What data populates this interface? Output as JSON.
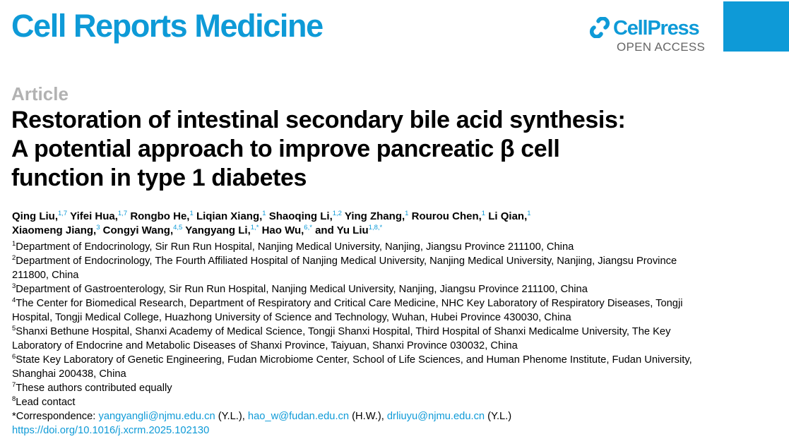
{
  "header": {
    "journal_title": "Cell Reports Medicine",
    "publisher_name": "CellPress",
    "open_access_label": "OPEN ACCESS",
    "brand_color": "#0e9ad7"
  },
  "article": {
    "type": "Article",
    "title": "Restoration of intestinal secondary bile acid synthesis: A potential approach to improve pancreatic β cell function in type 1 diabetes"
  },
  "authors": [
    {
      "name": "Qing Liu,",
      "sup": "1,7"
    },
    {
      "name": "Yifei Hua,",
      "sup": "1,7"
    },
    {
      "name": "Rongbo He,",
      "sup": "1"
    },
    {
      "name": "Liqian Xiang,",
      "sup": "1"
    },
    {
      "name": "Shaoqing Li,",
      "sup": "1,2"
    },
    {
      "name": "Ying Zhang,",
      "sup": "1"
    },
    {
      "name": "Rourou Chen,",
      "sup": "1"
    },
    {
      "name": "Li Qian,",
      "sup": "1"
    },
    {
      "name": "Xiaomeng Jiang,",
      "sup": "3"
    },
    {
      "name": "Congyi Wang,",
      "sup": "4,5"
    },
    {
      "name": "Yangyang Li,",
      "sup": "1,*"
    },
    {
      "name": "Hao Wu,",
      "sup": "6,*"
    },
    {
      "name": "and Yu Liu",
      "sup": "1,8,*"
    }
  ],
  "affiliations": [
    {
      "num": "1",
      "text": "Department of Endocrinology, Sir Run Run Hospital, Nanjing Medical University, Nanjing, Jiangsu Province 211100, China"
    },
    {
      "num": "2",
      "text": "Department of Endocrinology, The Fourth Affiliated Hospital of Nanjing Medical University, Nanjing Medical University, Nanjing, Jiangsu Province 211800, China"
    },
    {
      "num": "3",
      "text": "Department of Gastroenterology, Sir Run Run Hospital, Nanjing Medical University, Nanjing, Jiangsu Province 211100, China"
    },
    {
      "num": "4",
      "text": "The Center for Biomedical Research, Department of Respiratory and Critical Care Medicine, NHC Key Laboratory of Respiratory Diseases, Tongji Hospital, Tongji Medical College, Huazhong University of Science and Technology, Wuhan, Hubei Province 430030, China"
    },
    {
      "num": "5",
      "text": "Shanxi Bethune Hospital, Shanxi Academy of Medical Science, Tongji Shanxi Hospital, Third Hospital of Shanxi Medicalme University, The Key Laboratory of Endocrine and Metabolic Diseases of Shanxi Province, Taiyuan, Shanxi Province 030032, China"
    },
    {
      "num": "6",
      "text": "State Key Laboratory of Genetic Engineering, Fudan Microbiome Center, School of Life Sciences, and Human Phenome Institute, Fudan University, Shanghai 200438, China"
    },
    {
      "num": "7",
      "text": "These authors contributed equally"
    },
    {
      "num": "8",
      "text": "Lead contact"
    }
  ],
  "correspondence": {
    "label": "*Correspondence: ",
    "emails": [
      {
        "email": "yangyangli@njmu.edu.cn",
        "who": " (Y.L.), "
      },
      {
        "email": "hao_w@fudan.edu.cn",
        "who": " (H.W.), "
      },
      {
        "email": "drliuyu@njmu.edu.cn",
        "who": " (Y.L.)"
      }
    ]
  },
  "doi": "https://doi.org/10.1016/j.xcrm.2025.102130"
}
